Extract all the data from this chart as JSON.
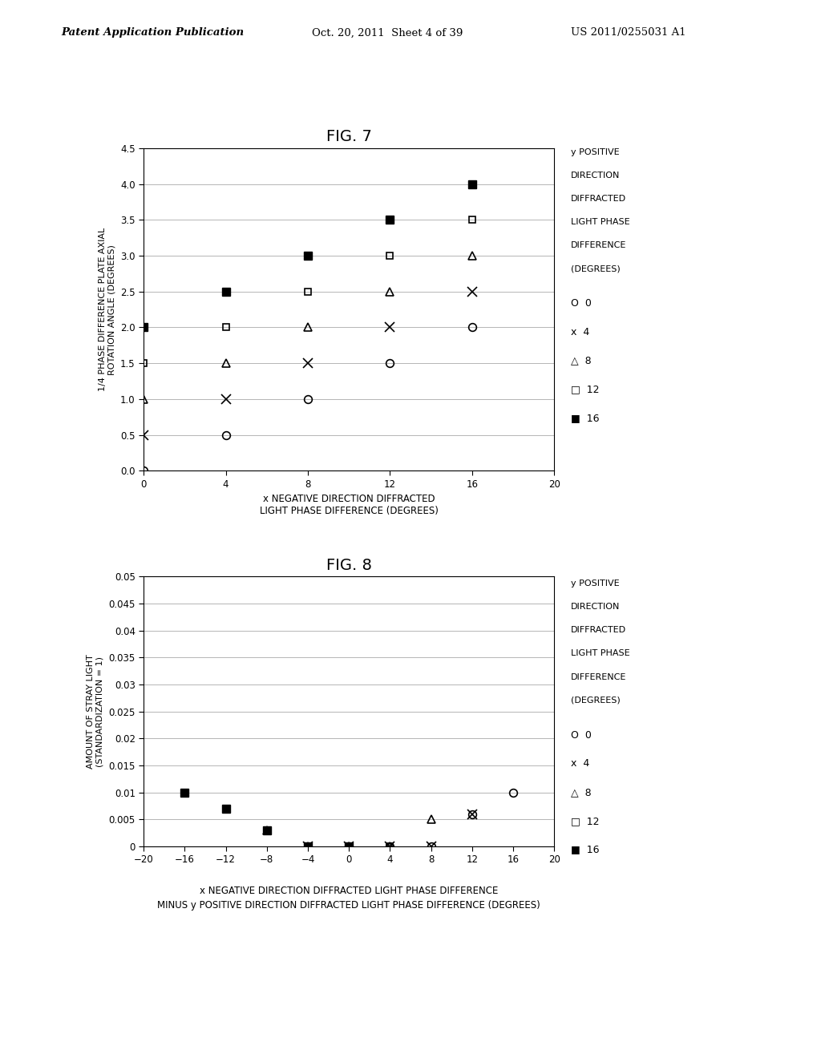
{
  "fig7": {
    "title": "FIG. 7",
    "xlabel": "x NEGATIVE DIRECTION DIFFRACTED\nLIGHT PHASE DIFFERENCE (DEGREES)",
    "ylabel": "1/4 PHASE DIFFERENCE PLATE AXIAL\nROTATION ANGLE (DEGREES)",
    "xlim": [
      0,
      20
    ],
    "ylim": [
      0,
      4.5
    ],
    "xticks": [
      0,
      4,
      8,
      12,
      16,
      20
    ],
    "yticks": [
      0,
      0.5,
      1,
      1.5,
      2,
      2.5,
      3,
      3.5,
      4,
      4.5
    ],
    "series": [
      {
        "name": "0",
        "x": [
          0,
          4,
          8,
          12,
          16
        ],
        "y": [
          0,
          0.5,
          1,
          1.5,
          2
        ],
        "marker": "o",
        "filled": false
      },
      {
        "name": "4",
        "x": [
          0,
          4,
          8,
          12,
          16
        ],
        "y": [
          0.5,
          1,
          1.5,
          2,
          2.5
        ],
        "marker": "x",
        "filled": false
      },
      {
        "name": "8",
        "x": [
          0,
          4,
          8,
          12,
          16
        ],
        "y": [
          1,
          1.5,
          2,
          2.5,
          3
        ],
        "marker": "^",
        "filled": false
      },
      {
        "name": "12",
        "x": [
          0,
          4,
          8,
          12,
          16
        ],
        "y": [
          1.5,
          2,
          2.5,
          3,
          3.5
        ],
        "marker": "s",
        "filled": false
      },
      {
        "name": "16",
        "x": [
          0,
          4,
          8,
          12,
          16
        ],
        "y": [
          2,
          2.5,
          3,
          3.5,
          4
        ],
        "marker": "s",
        "filled": true
      }
    ],
    "legend_header": [
      "y POSITIVE",
      "DIRECTION",
      "DIFFRACTED",
      "LIGHT PHASE",
      "DIFFERENCE",
      "(DEGREES)"
    ],
    "legend_items": [
      {
        "symbol": "O",
        "label": "0"
      },
      {
        "symbol": "x",
        "label": "4"
      },
      {
        "symbol": "△",
        "label": "8"
      },
      {
        "symbol": "□",
        "label": "12"
      },
      {
        "symbol": "■",
        "label": "16"
      }
    ]
  },
  "fig8": {
    "title": "FIG. 8",
    "xlabel1": "x NEGATIVE DIRECTION DIFFRACTED LIGHT PHASE DIFFERENCE",
    "xlabel2": "MINUS y POSITIVE DIRECTION DIFFRACTED LIGHT PHASE DIFFERENCE (DEGREES)",
    "ylabel": "AMOUNT OF STRAY LIGHT\n(STANDARDIZATION = 1)",
    "xlim": [
      -20,
      20
    ],
    "ylim": [
      0,
      0.05
    ],
    "xticks": [
      -20,
      -16,
      -12,
      -8,
      -4,
      0,
      4,
      8,
      12,
      16,
      20
    ],
    "yticks": [
      0,
      0.005,
      0.01,
      0.015,
      0.02,
      0.025,
      0.03,
      0.035,
      0.04,
      0.045,
      0.05
    ],
    "ytick_labels": [
      "0",
      "0.005",
      "0.01",
      "0.015",
      "0.02",
      "0.025",
      "0.03",
      "0.035",
      "0.04",
      "0.045",
      "0.05"
    ],
    "series": [
      {
        "name": "0",
        "x": [
          0,
          4,
          8,
          12,
          16
        ],
        "y": [
          0.0,
          0.0,
          0.0,
          0.006,
          0.01
        ],
        "marker": "o",
        "filled": false
      },
      {
        "name": "4",
        "x": [
          -4,
          0,
          4,
          8,
          12
        ],
        "y": [
          0.0,
          0.0,
          0.0,
          0.0,
          0.006
        ],
        "marker": "x",
        "filled": false
      },
      {
        "name": "8",
        "x": [
          -8,
          -4,
          0,
          4,
          8
        ],
        "y": [
          0.003,
          0.0,
          0.0,
          0.0,
          0.005
        ],
        "marker": "^",
        "filled": false
      },
      {
        "name": "12",
        "x": [
          -12,
          -8,
          -4,
          0,
          4
        ],
        "y": [
          0.007,
          0.003,
          0.0,
          0.0,
          0.0
        ],
        "marker": "s",
        "filled": false
      },
      {
        "name": "16",
        "x": [
          -16,
          -12,
          -8,
          -4,
          0
        ],
        "y": [
          0.01,
          0.007,
          0.003,
          0.0,
          0.0
        ],
        "marker": "s",
        "filled": true
      }
    ],
    "legend_header": [
      "y POSITIVE",
      "DIRECTION",
      "DIFFRACTED",
      "LIGHT PHASE",
      "DIFFERENCE",
      "(DEGREES)"
    ],
    "legend_items": [
      {
        "symbol": "O",
        "label": "0"
      },
      {
        "symbol": "x",
        "label": "4"
      },
      {
        "symbol": "△",
        "label": "8"
      },
      {
        "symbol": "□",
        "label": "12"
      },
      {
        "symbol": "■",
        "label": "16"
      }
    ]
  },
  "header": {
    "left": "Patent Application Publication",
    "middle": "Oct. 20, 2011  Sheet 4 of 39",
    "right": "US 2011/0255031 A1"
  }
}
